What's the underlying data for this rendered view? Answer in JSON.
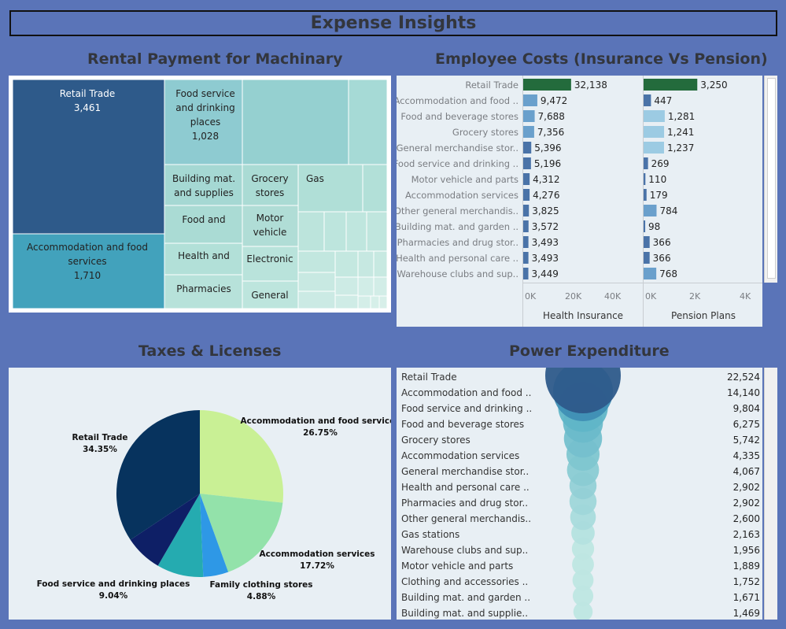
{
  "dashboard": {
    "title": "Expense Insights"
  },
  "titles": {
    "rental": "Rental Payment for Machinary",
    "employee": "Employee Costs (Insurance Vs Pension)",
    "taxes": "Taxes & Licenses",
    "power": "Power Expenditure"
  },
  "chart_data": [
    {
      "type": "treemap",
      "title": "Rental Payment for Machinary",
      "items": [
        {
          "label": "Retail Trade",
          "value": 3461
        },
        {
          "label": "Accommodation and food services",
          "value": 1710
        },
        {
          "label": "Food service and drinking places",
          "value": 1028
        },
        {
          "label": "Building mat. and supplies"
        },
        {
          "label": "Grocery stores"
        },
        {
          "label": "Gas"
        },
        {
          "label": "Food and"
        },
        {
          "label": "Motor vehicle"
        },
        {
          "label": "Health and"
        },
        {
          "label": "Electronic"
        },
        {
          "label": "Pharmacies"
        },
        {
          "label": "General"
        }
      ]
    },
    {
      "type": "bar",
      "title": "Employee Costs (Insurance Vs Pension)",
      "categories": [
        "Retail Trade",
        "Accommodation and food ..",
        "Food and beverage stores",
        "Grocery stores",
        "General merchandise stor..",
        "Food service and drinking ..",
        "Motor vehicle and parts",
        "Accommodation services",
        "Other general merchandis..",
        "Building mat. and garden ..",
        "Pharmacies and drug stor..",
        "Health and personal care ..",
        "Warehouse clubs and sup.."
      ],
      "series": [
        {
          "name": "Health Insurance",
          "values": [
            32138,
            9472,
            7688,
            7356,
            5396,
            5196,
            4312,
            4276,
            3825,
            3572,
            3493,
            3493,
            3449
          ],
          "ticks": [
            "0K",
            "20K",
            "40K"
          ],
          "max": 47000
        },
        {
          "name": "Pension Plans",
          "values": [
            3250,
            447,
            1281,
            1241,
            1237,
            269,
            110,
            179,
            784,
            98,
            366,
            366,
            768
          ],
          "ticks": [
            "0K",
            "2K",
            "4K"
          ],
          "max": 5000
        }
      ],
      "value_labels": {
        "health": [
          "32,138",
          "9,472",
          "7,688",
          "7,356",
          "5,396",
          "5,196",
          "4,312",
          "4,276",
          "3,825",
          "3,572",
          "3,493",
          "3,493",
          "3,449"
        ],
        "pension": [
          "3,250",
          "447",
          "1,281",
          "1,241",
          "1,237",
          "269",
          "110",
          "179",
          "784",
          "98",
          "366",
          "366",
          "768"
        ]
      },
      "colors": {
        "highlight": "#236b3c",
        "dark": "#4a73a8",
        "light": "#9ccbe3"
      }
    },
    {
      "type": "pie",
      "title": "Taxes & Licenses",
      "slices": [
        {
          "label": "Accommodation and food services",
          "pct_label": "26.75%",
          "value": 26.75,
          "color": "#c9f095"
        },
        {
          "label": "Accommodation services",
          "pct_label": "17.72%",
          "value": 17.72,
          "color": "#93e2aa"
        },
        {
          "label": "Family clothing stores",
          "pct_label": "4.88%",
          "value": 4.88,
          "color": "#2e98e6"
        },
        {
          "label": "Food service and drinking places",
          "pct_label": "9.04%",
          "value": 9.04,
          "color": "#25abb0"
        },
        {
          "label": "",
          "pct_label": "",
          "value": 7.26,
          "color": "#0e1f66"
        },
        {
          "label": "Retail Trade",
          "pct_label": "34.35%",
          "value": 34.35,
          "color": "#07335e"
        }
      ]
    },
    {
      "type": "bubble",
      "title": "Power Expenditure",
      "categories": [
        "Retail Trade",
        "Accommodation and food ..",
        "Food service and drinking ..",
        "Food and beverage stores",
        "Grocery stores",
        "Accommodation services",
        "General merchandise stor..",
        "Health and personal care ..",
        "Pharmacies and drug stor..",
        "Other general merchandis..",
        "Gas stations",
        "Warehouse clubs and sup..",
        "Motor vehicle and parts",
        "Clothing and accessories ..",
        "Building mat. and garden ..",
        "Building mat. and supplie.."
      ],
      "values": [
        22524,
        14140,
        9804,
        6275,
        5742,
        4335,
        4067,
        2902,
        2902,
        2600,
        2163,
        1956,
        1889,
        1752,
        1671,
        1469
      ],
      "value_labels": [
        "22,524",
        "14,140",
        "9,804",
        "6,275",
        "5,742",
        "4,335",
        "4,067",
        "2,902",
        "2,902",
        "2,600",
        "2,163",
        "1,956",
        "1,889",
        "1,752",
        "1,671",
        "1,469"
      ]
    }
  ]
}
